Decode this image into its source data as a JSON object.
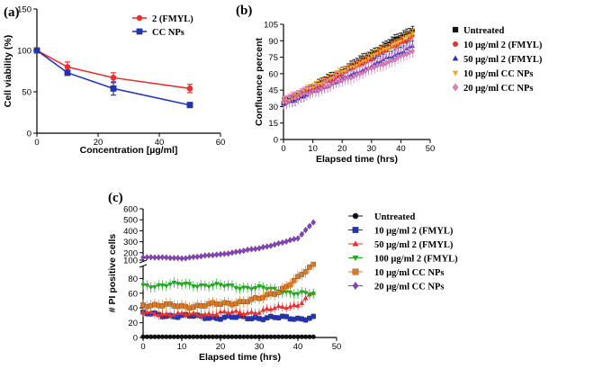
{
  "chart_data": [
    {
      "panel": "(a)",
      "type": "line",
      "xlabel": "Concentration [µg/ml]",
      "ylabel": "Cell viability (%)",
      "xlim": [
        0,
        60
      ],
      "ylim": [
        0,
        150
      ],
      "xticks": [
        0,
        20,
        40,
        60
      ],
      "yticks": [
        0,
        50,
        100,
        150
      ],
      "legend_position": "top-right",
      "series": [
        {
          "name": "2 (FMYL)",
          "color": "#e8312f",
          "marker": "circle",
          "x": [
            0,
            10,
            25,
            50
          ],
          "y": [
            100,
            80,
            67,
            54
          ],
          "err": [
            0,
            6,
            6,
            5
          ]
        },
        {
          "name": "CC NPs",
          "color": "#2233bb",
          "marker": "square",
          "x": [
            0,
            10,
            25,
            50
          ],
          "y": [
            100,
            73,
            54,
            34
          ],
          "err": [
            0,
            3,
            8,
            3
          ]
        }
      ]
    },
    {
      "panel": "(b)",
      "type": "line",
      "xlabel": "Elapsed time (hrs)",
      "ylabel": "Confluence percent",
      "xlim": [
        0,
        50
      ],
      "ylim": [
        0,
        105
      ],
      "xticks": [
        0,
        10,
        20,
        30,
        40,
        50
      ],
      "yticks": [
        0,
        15,
        30,
        45,
        60,
        75,
        90,
        105
      ],
      "legend_position": "right",
      "x_start": 0,
      "x_end": 44,
      "x_step": 1,
      "series": [
        {
          "name": "Untreated",
          "color": "#111111",
          "marker": "square",
          "start": 33,
          "end": 100,
          "err": 4
        },
        {
          "name": "10 µg/ml 2 (FMYL)",
          "color": "#e8312f",
          "marker": "circle",
          "start": 33,
          "end": 94,
          "err": 4
        },
        {
          "name": "50 µg/ml 2 (FMYL)",
          "color": "#2233bb",
          "marker": "triangle-up",
          "start": 32,
          "end": 85,
          "err": 5
        },
        {
          "name": "10 µg/ml CC NPs",
          "color": "#f5a623",
          "marker": "triangle-down",
          "start": 34,
          "end": 96,
          "err": 4
        },
        {
          "name": "20 µg/ml CC NPs",
          "color": "#ee77c8",
          "marker": "diamond",
          "start": 34,
          "end": 80,
          "err": 6
        }
      ]
    },
    {
      "panel": "(c)",
      "type": "line",
      "xlabel": "Elapsed time (hrs)",
      "ylabel": "# PI positive cells",
      "xlim": [
        0,
        50
      ],
      "ylim": [
        0,
        600
      ],
      "axis_break": [
        100,
        100
      ],
      "xticks": [
        0,
        10,
        20,
        30,
        40,
        50
      ],
      "yticks_lower": [
        0,
        20,
        40,
        60,
        80,
        100
      ],
      "yticks_upper": [
        100,
        200,
        300,
        400,
        500,
        600
      ],
      "legend_position": "right",
      "x_start": 0,
      "x_end": 44,
      "x_step": 1,
      "series": [
        {
          "name": "Untreated",
          "color": "#111111",
          "marker": "circle",
          "x": [
            0,
            44
          ],
          "y": [
            1,
            1
          ],
          "err": 0
        },
        {
          "name": "10 µg/ml 2 (FMYL)",
          "color": "#2233bb",
          "marker": "square",
          "x": [
            0,
            10,
            20,
            30,
            40,
            44
          ],
          "y": [
            32,
            29,
            27,
            27,
            26,
            27
          ],
          "err": 4
        },
        {
          "name": "50 µg/ml 2 (FMYL)",
          "color": "#e8312f",
          "marker": "triangle-up",
          "x": [
            0,
            10,
            20,
            30,
            40,
            44
          ],
          "y": [
            34,
            31,
            33,
            35,
            45,
            60
          ],
          "err": 6
        },
        {
          "name": "100 µg/ml 2 (FMYL)",
          "color": "#22aa22",
          "marker": "triangle-down",
          "x": [
            0,
            10,
            20,
            30,
            40,
            44
          ],
          "y": [
            70,
            72,
            70,
            67,
            60,
            58
          ],
          "err": 7
        },
        {
          "name": "10 µg/ml CC NPs",
          "color": "#e07a20",
          "marker": "square",
          "x": [
            0,
            10,
            20,
            30,
            35,
            40,
            44
          ],
          "y": [
            45,
            42,
            45,
            52,
            63,
            80,
            98
          ],
          "err": 8
        },
        {
          "name": "20 µg/ml CC NPs",
          "color": "#8a3ec0",
          "marker": "diamond",
          "x": [
            0,
            10,
            20,
            30,
            40,
            44
          ],
          "y": [
            160,
            150,
            185,
            240,
            330,
            480
          ],
          "err": 12
        }
      ]
    }
  ]
}
